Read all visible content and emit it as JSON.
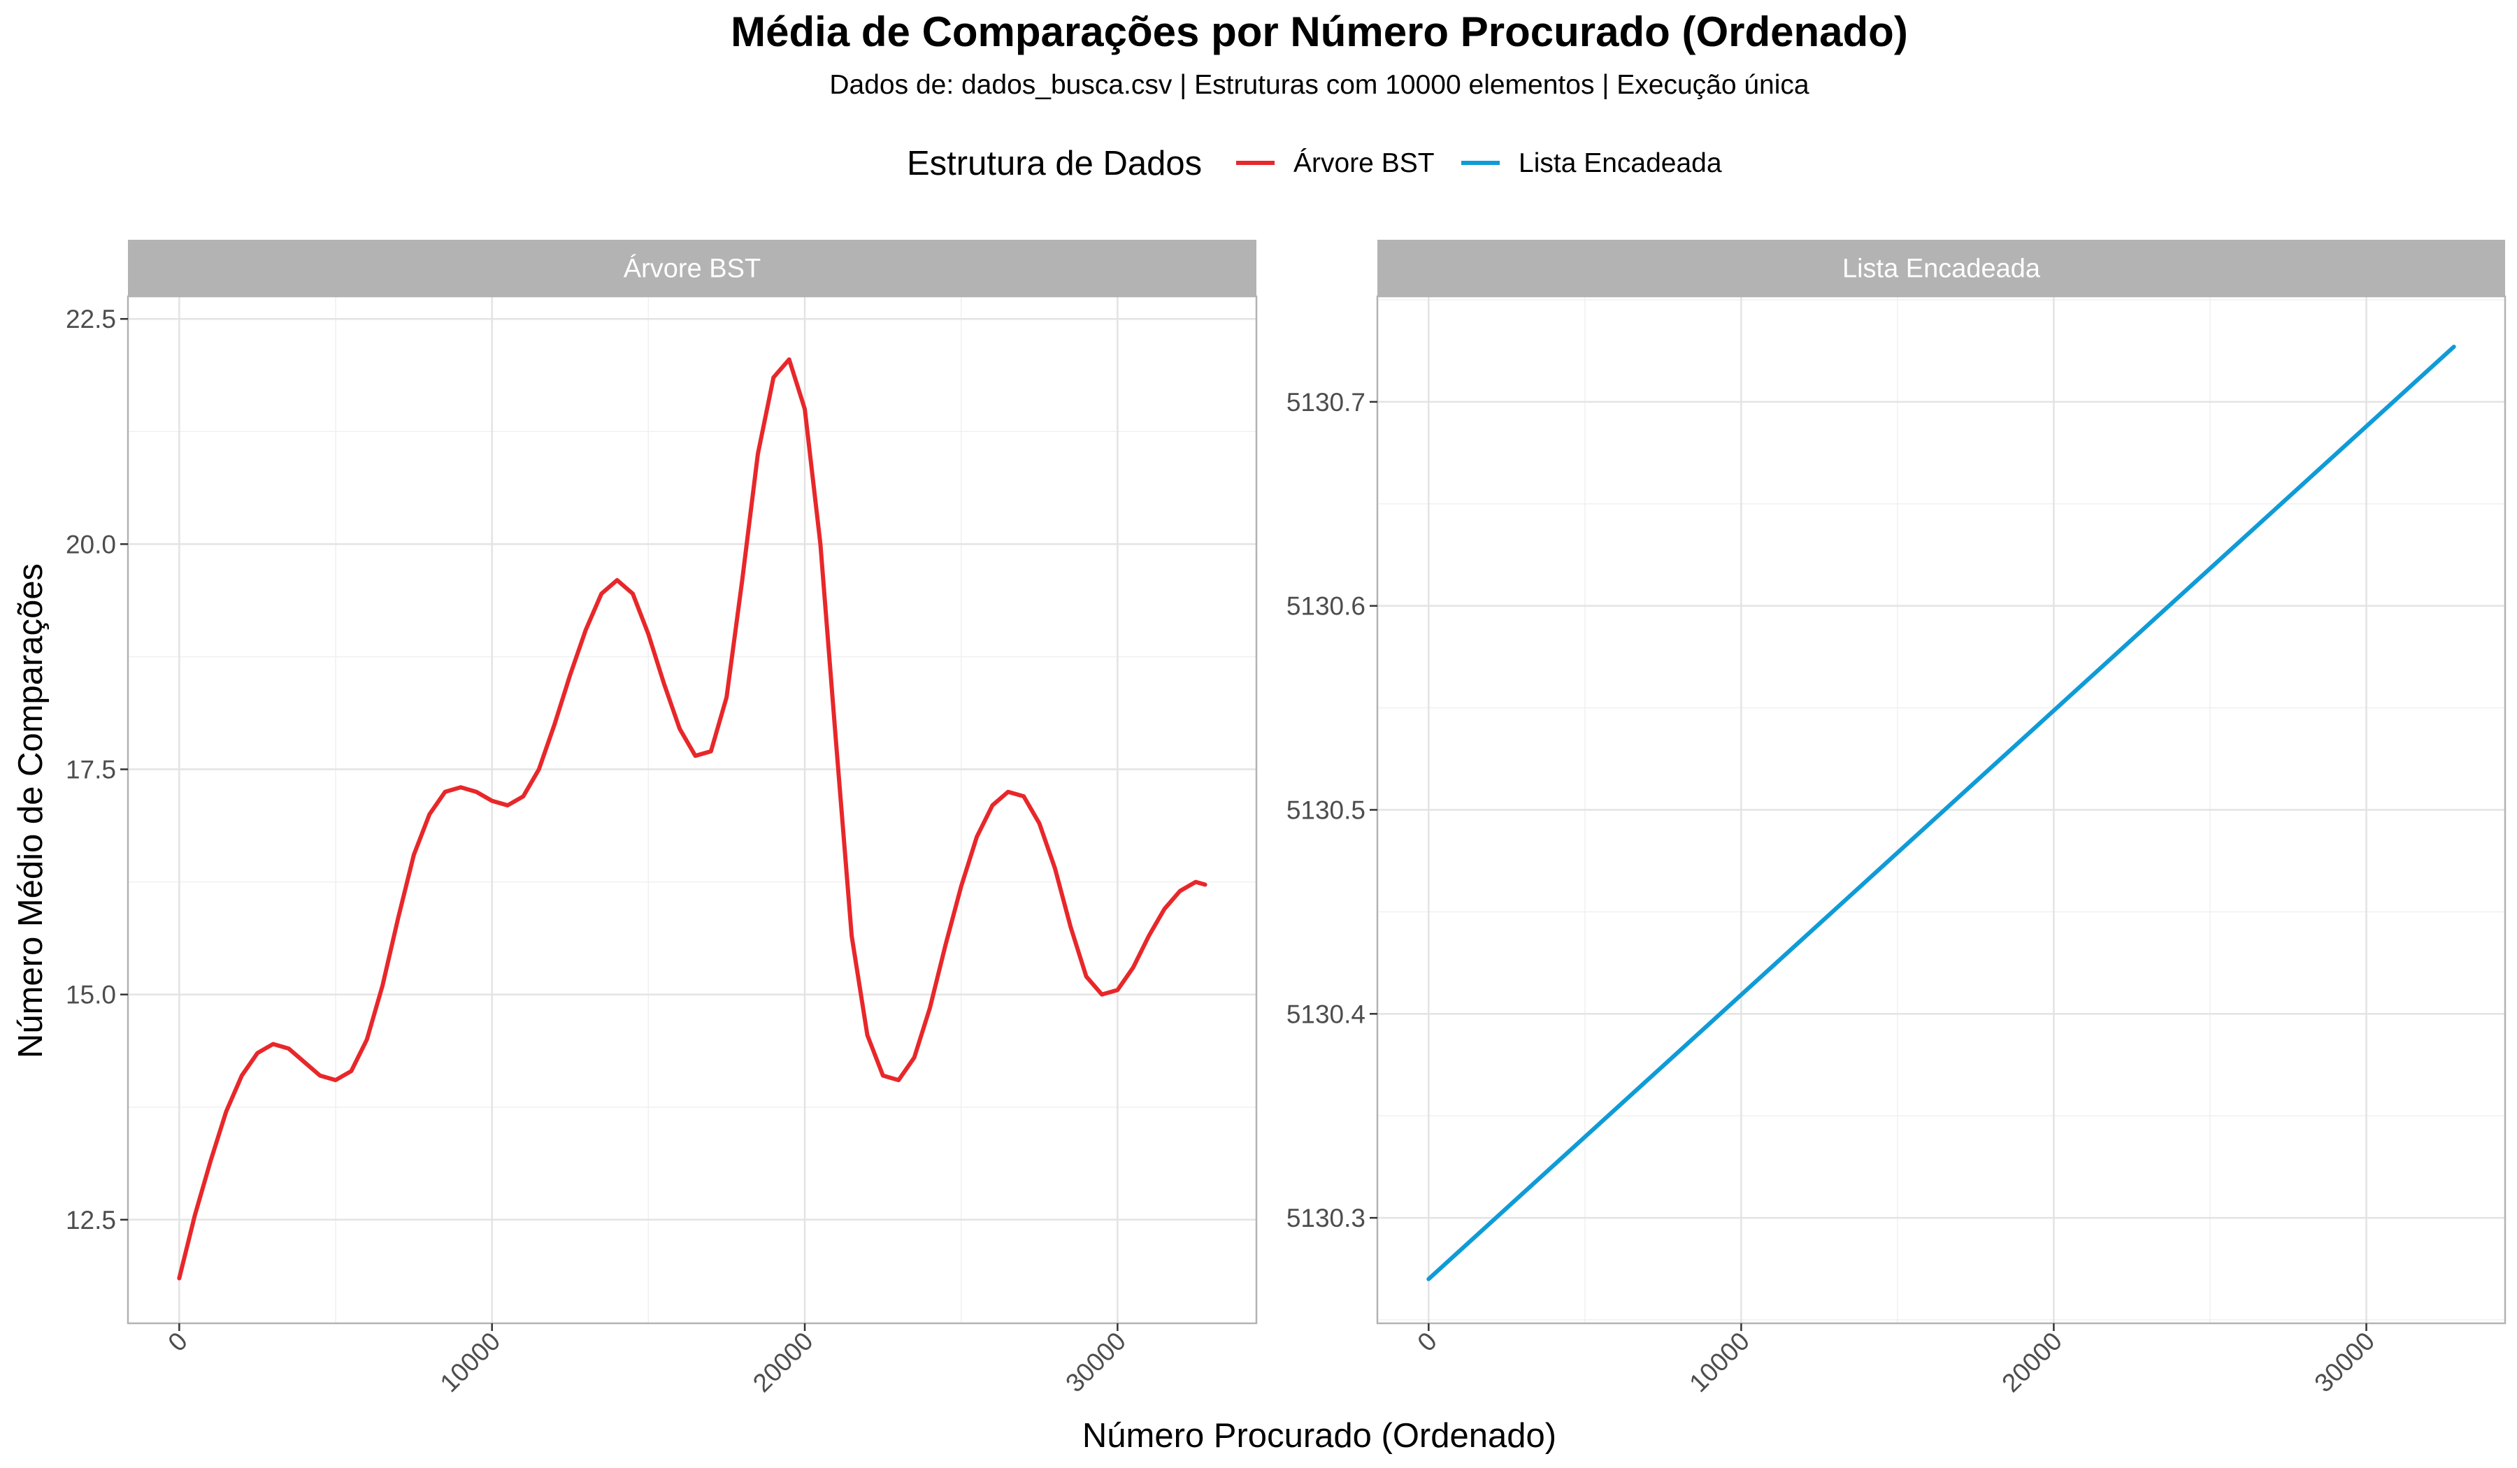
{
  "chart_data": {
    "type": "line",
    "title": "Média de Comparações por Número Procurado (Ordenado)",
    "subtitle": "Dados de: dados_busca.csv | Estruturas com 10000 elementos | Execução única",
    "xlabel": "Número Procurado (Ordenado)",
    "ylabel": "Número Médio de Comparações",
    "legend": {
      "title": "Estrutura de Dados",
      "position": "top",
      "entries": [
        {
          "label": "Árvore BST",
          "color": "#e8272a"
        },
        {
          "label": "Lista Encadeada",
          "color": "#0f9bd7"
        }
      ]
    },
    "grid": true,
    "facets": [
      {
        "strip": "Árvore BST",
        "series_name": "Árvore BST",
        "color": "#e8272a",
        "xlim": [
          -1640,
          34440
        ],
        "ylim": [
          11.35,
          22.75
        ],
        "x_ticks": [
          "0",
          "10000",
          "20000",
          "30000"
        ],
        "x_tick_values": [
          0,
          10000,
          20000,
          30000
        ],
        "y_ticks": [
          "12.5",
          "15.0",
          "17.5",
          "20.0",
          "22.5"
        ],
        "y_tick_values": [
          12.5,
          15.0,
          17.5,
          20.0,
          22.5
        ],
        "x": [
          0,
          500,
          1000,
          1500,
          2000,
          2500,
          3000,
          3500,
          4000,
          4500,
          5000,
          5500,
          6000,
          6500,
          7000,
          7500,
          8000,
          8500,
          9000,
          9500,
          10000,
          10500,
          11000,
          11500,
          12000,
          12500,
          13000,
          13500,
          14000,
          14500,
          15000,
          15500,
          16000,
          16500,
          17000,
          17500,
          18000,
          18500,
          19000,
          19500,
          20000,
          20500,
          21000,
          21500,
          22000,
          22500,
          23000,
          23500,
          24000,
          24500,
          25000,
          25500,
          26000,
          26500,
          27000,
          27500,
          28000,
          28500,
          29000,
          29500,
          30000,
          30500,
          31000,
          31500,
          32000,
          32500,
          32800
        ],
        "y": [
          11.85,
          12.55,
          13.15,
          13.7,
          14.1,
          14.35,
          14.45,
          14.4,
          14.25,
          14.1,
          14.05,
          14.15,
          14.5,
          15.1,
          15.85,
          16.55,
          17.0,
          17.25,
          17.3,
          17.25,
          17.15,
          17.1,
          17.2,
          17.5,
          18.0,
          18.55,
          19.05,
          19.45,
          19.6,
          19.45,
          19.0,
          18.45,
          17.95,
          17.65,
          17.7,
          18.3,
          19.6,
          21.0,
          21.85,
          22.05,
          21.5,
          20.0,
          17.8,
          15.65,
          14.55,
          14.1,
          14.05,
          14.3,
          14.85,
          15.55,
          16.2,
          16.75,
          17.1,
          17.25,
          17.2,
          16.9,
          16.4,
          15.75,
          15.2,
          15.0,
          15.05,
          15.3,
          15.65,
          15.95,
          16.15,
          16.25,
          16.22
        ]
      },
      {
        "strip": "Lista Encadeada",
        "series_name": "Lista Encadeada",
        "color": "#0f9bd7",
        "xlim": [
          -1640,
          34440
        ],
        "ylim": [
          5130.2483,
          5130.7517
        ],
        "x_ticks": [
          "0",
          "10000",
          "20000",
          "30000"
        ],
        "x_tick_values": [
          0,
          10000,
          20000,
          30000
        ],
        "y_ticks": [
          "5130.3",
          "5130.4",
          "5130.5",
          "5130.6",
          "5130.7"
        ],
        "y_tick_values": [
          5130.3,
          5130.4,
          5130.5,
          5130.6,
          5130.7
        ],
        "x": [
          0,
          32800
        ],
        "y": [
          5130.27,
          5130.727
        ]
      }
    ]
  }
}
